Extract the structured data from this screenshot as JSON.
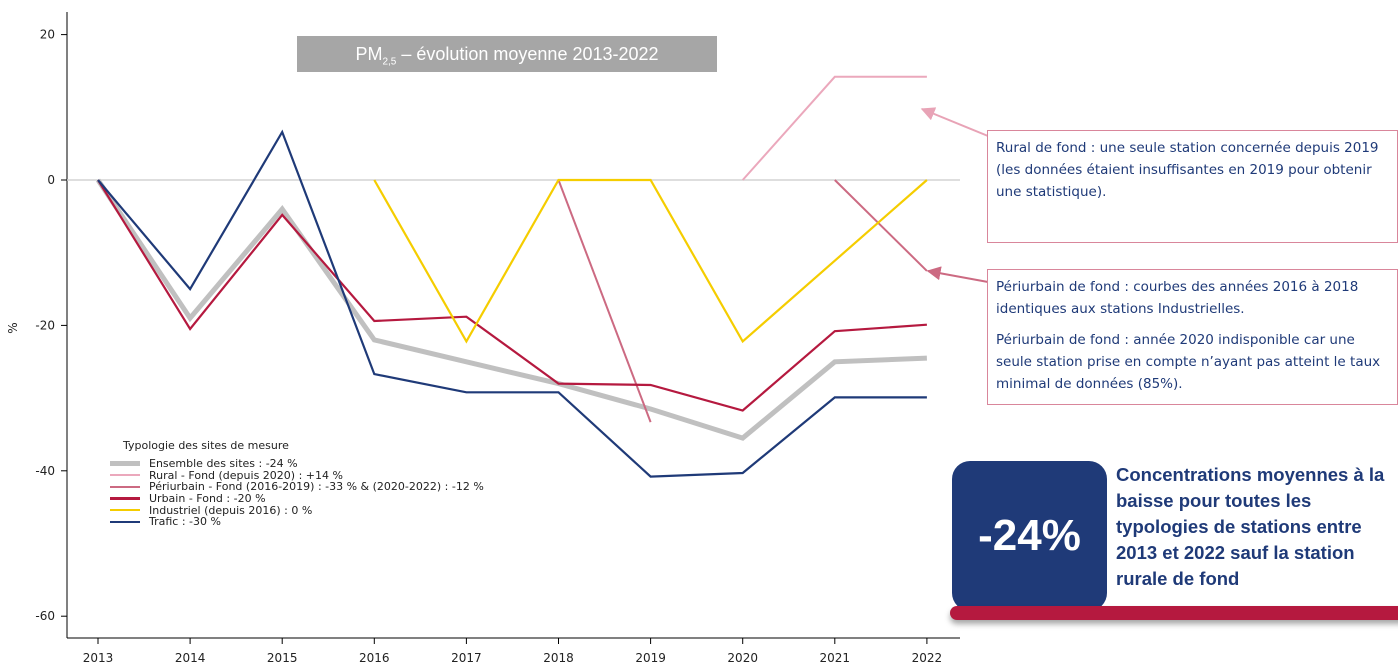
{
  "chart_data": {
    "type": "line",
    "title_main": "PM",
    "title_sub": "2,5",
    "title_rest": " – évolution moyenne 2013-2022",
    "ylabel": "%",
    "xlabel": "",
    "ylim": [
      -66,
      22
    ],
    "y_ticks": [
      20,
      0,
      -20,
      -40,
      -60
    ],
    "x": [
      "2013",
      "2014",
      "2015",
      "2016",
      "2017",
      "2018",
      "2019",
      "2020",
      "2021",
      "2022"
    ],
    "grid": false,
    "zero_line": true,
    "legend_title": "Typologie des sites de mesure",
    "series": [
      {
        "name": "Ensemble des sites : -24 %",
        "color": "#c0c0c0",
        "width": 5,
        "segments": [
          [
            [
              2013,
              0
            ],
            [
              2014,
              -19
            ],
            [
              2015,
              -4
            ],
            [
              2016,
              -22
            ],
            [
              2017,
              -25
            ],
            [
              2018,
              -28
            ],
            [
              2019,
              -31.5
            ],
            [
              2020,
              -35.5
            ],
            [
              2021,
              -25
            ],
            [
              2022,
              -24.5
            ]
          ]
        ]
      },
      {
        "name": "Rural - Fond (depuis 2020) : +14 %",
        "color": "#eba8bc",
        "width": 2,
        "segments": [
          [
            [
              2020,
              0
            ],
            [
              2021,
              14.2
            ],
            [
              2022,
              14.2
            ]
          ]
        ]
      },
      {
        "name": "Périurbain - Fond (2016-2019) : -33 % & (2020-2022) : -12 %",
        "color": "#cc6a82",
        "width": 2,
        "segments": [
          [
            [
              2018,
              0
            ],
            [
              2019,
              -33.3
            ]
          ],
          [
            [
              2021,
              0
            ],
            [
              2022,
              -12.5
            ]
          ]
        ]
      },
      {
        "name": "Urbain - Fond : -20 %",
        "color": "#b5193f",
        "width": 2.2,
        "segments": [
          [
            [
              2013,
              0
            ],
            [
              2014,
              -20.5
            ],
            [
              2015,
              -4.8
            ],
            [
              2016,
              -19.4
            ],
            [
              2017,
              -18.8
            ],
            [
              2018,
              -28
            ],
            [
              2019,
              -28.2
            ],
            [
              2020,
              -31.7
            ],
            [
              2021,
              -20.8
            ],
            [
              2022,
              -19.9
            ]
          ]
        ]
      },
      {
        "name": "Industriel (depuis 2016) : 0 %",
        "color": "#f5cd00",
        "width": 2.2,
        "segments": [
          [
            [
              2016,
              0
            ],
            [
              2017,
              -22.2
            ],
            [
              2018,
              0
            ],
            [
              2019,
              0
            ],
            [
              2020,
              -22.2
            ],
            [
              2021,
              -11.1
            ],
            [
              2022,
              0
            ]
          ]
        ]
      },
      {
        "name": "Trafic : -30 %",
        "color": "#1f3a78",
        "width": 2.2,
        "segments": [
          [
            [
              2013,
              0
            ],
            [
              2014,
              -15
            ],
            [
              2015,
              6.6
            ],
            [
              2016,
              -26.7
            ],
            [
              2017,
              -29.2
            ],
            [
              2018,
              -29.2
            ],
            [
              2019,
              -40.8
            ],
            [
              2020,
              -40.3
            ],
            [
              2021,
              -29.9
            ],
            [
              2022,
              -29.9
            ]
          ]
        ]
      }
    ]
  },
  "annotations": {
    "rural_note": "Rural de fond : une seule station concernée depuis 2019 (les données étaient insuffisantes en 2019 pour obtenir une statistique).",
    "periurbain_note_1": "Périurbain de fond : courbes des années 2016 à 2018 identiques aux stations Industrielles.",
    "periurbain_note_2": "Périurbain de fond : année 2020 indisponible car une seule station prise en compte n’ayant pas atteint le taux minimal de données (85%).",
    "badge_value": "-24%",
    "badge_text": "Concentrations moyennes à la baisse pour toutes les typologies de stations entre 2013 et 2022 sauf la station rurale de fond",
    "note_border_color": "#d9869b",
    "accent_color": "#1f3a78",
    "underline_color": "#b5193f"
  }
}
